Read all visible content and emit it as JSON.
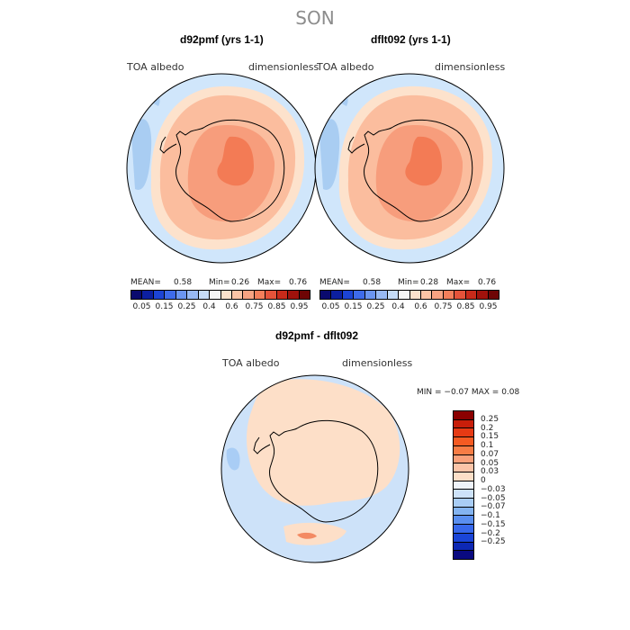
{
  "season": "SON",
  "colors": {
    "ocean_light": "#d0e6fb",
    "ocean_mid": "#a9cdf2",
    "ocean_deep": "#8ab8ec",
    "peach_light": "#fde2cc",
    "peach_mid": "#fbbd9e",
    "salmon": "#f79d7c",
    "orange": "#f37b55",
    "diff_pos": "#fddfc8",
    "diff_neg": "#cde2f9",
    "diff_strong": "#f38a63",
    "coast": "#000000"
  },
  "panels": {
    "top_left": {
      "title": "d92pmf (yrs 1-1)",
      "variable": "TOA albedo",
      "units": "dimensionless",
      "mean_label": "MEAN=",
      "mean_value": "0.58",
      "min_label": "Min=",
      "min_value": "0.26",
      "max_label": "Max=",
      "max_value": "0.76"
    },
    "top_right": {
      "title": "dflt092 (yrs 1-1)",
      "variable": "TOA albedo",
      "units": "dimensionless",
      "mean_label": "MEAN=",
      "mean_value": "0.58",
      "min_label": "Min=",
      "min_value": "0.28",
      "max_label": "Max=",
      "max_value": "0.76"
    },
    "diff": {
      "title": "d92pmf - dflt092",
      "variable": "TOA albedo",
      "units": "dimensionless",
      "minmax_text": "MIN =   −0.07  MAX =    0.08"
    }
  },
  "colorbar_top": {
    "colors": [
      "#0a0a6e",
      "#0c1fa0",
      "#1c44d4",
      "#3e6bea",
      "#6b95f0",
      "#98b9f3",
      "#c6dcf8",
      "#f5f5f5",
      "#fde2cc",
      "#fbc4a6",
      "#f8a382",
      "#f47f5b",
      "#e5533a",
      "#c82a1a",
      "#a0120c",
      "#6e0505"
    ],
    "ticks": [
      "0.05",
      "0.15",
      "0.25",
      "0.4",
      "0.6",
      "0.75",
      "0.85",
      "0.95"
    ]
  },
  "colorbar_diff": {
    "colors": [
      "#8b0000",
      "#c81e0a",
      "#e63a14",
      "#f55a22",
      "#f77c45",
      "#f9a07a",
      "#fbc4a8",
      "#fddfc8",
      "#eef3fa",
      "#cde2f9",
      "#a9cdf5",
      "#84b4f1",
      "#5a8ff0",
      "#3768ec",
      "#1a45d8",
      "#0d28b4",
      "#0a0a80"
    ],
    "ticks": [
      "0.25",
      "0.2",
      "0.15",
      "0.1",
      "0.07",
      "0.05",
      "0.03",
      "0",
      "−0.03",
      "−0.05",
      "−0.07",
      "−0.1",
      "−0.15",
      "−0.2",
      "−0.25"
    ]
  }
}
